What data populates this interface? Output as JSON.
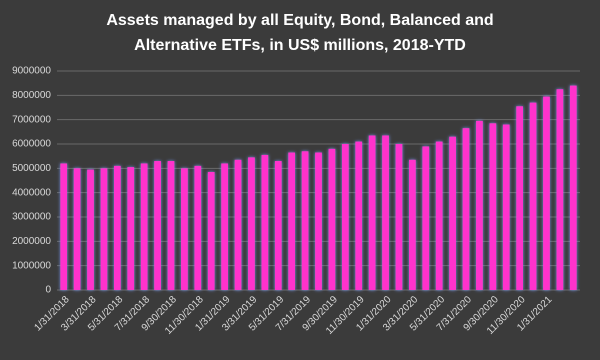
{
  "chart_data": {
    "type": "bar",
    "title": "Assets managed by all Equity, Bond, Balanced and Alternative ETFs, in US$ millions, 2018-YTD",
    "categories": [
      "1/31/2018",
      null,
      "3/31/2018",
      null,
      "5/31/2018",
      null,
      "7/31/2018",
      null,
      "9/30/2018",
      null,
      "11/30/2018",
      null,
      "1/31/2019",
      null,
      "3/31/2019",
      null,
      "5/31/2019",
      null,
      "7/31/2019",
      null,
      "9/30/2019",
      null,
      "11/30/2019",
      null,
      "1/31/2020",
      null,
      "3/31/2020",
      null,
      "5/31/2020",
      null,
      "7/31/2020",
      null,
      "9/30/2020",
      null,
      "11/30/2020",
      null,
      "1/31/2021",
      null,
      null
    ],
    "values": [
      5200000,
      5000000,
      4950000,
      5000000,
      5100000,
      5050000,
      5200000,
      5300000,
      5300000,
      5000000,
      5100000,
      4850000,
      5200000,
      5350000,
      5450000,
      5550000,
      5300000,
      5650000,
      5700000,
      5650000,
      5800000,
      6000000,
      6100000,
      6350000,
      6350000,
      6000000,
      5350000,
      5900000,
      6100000,
      6300000,
      6650000,
      6950000,
      6850000,
      6800000,
      7550000,
      7700000,
      7950000,
      8250000,
      8400000
    ],
    "color": "#ff33cc",
    "ylim": [
      0,
      9000000
    ],
    "yticks": [
      0,
      1000000,
      2000000,
      3000000,
      4000000,
      5000000,
      6000000,
      7000000,
      8000000,
      9000000
    ],
    "grid": true
  }
}
